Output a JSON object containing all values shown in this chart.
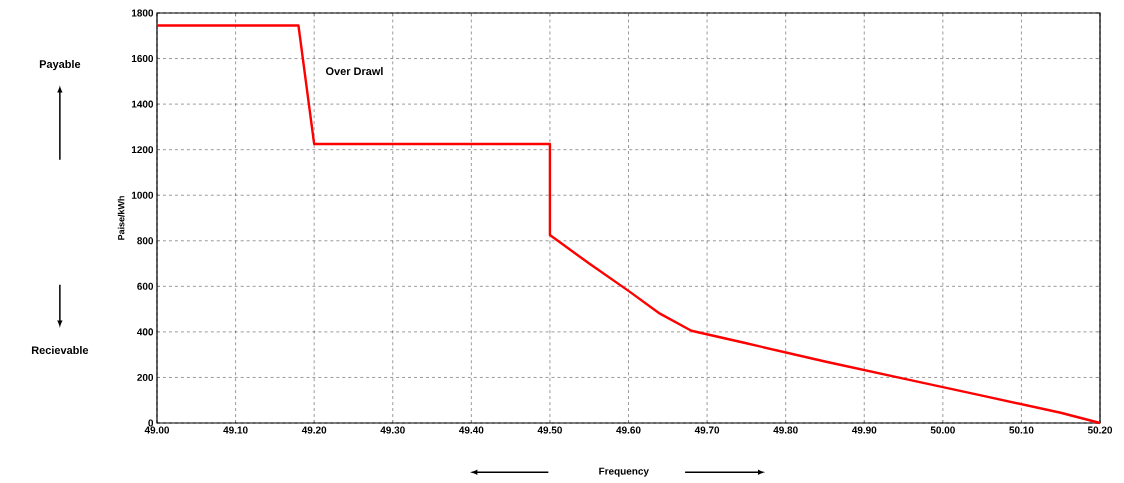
{
  "chart_data": {
    "type": "line",
    "ylabel": "Paise/kWh",
    "xlabel": "Frequency",
    "annotations": [
      "Over Drawl",
      "Payable",
      "Recievable"
    ],
    "series": [
      {
        "color": "#ff0000",
        "x": [
          49.0,
          49.18,
          49.2,
          49.5,
          49.5,
          49.55,
          49.6,
          49.64,
          49.68,
          49.75,
          49.85,
          49.95,
          50.05,
          50.15,
          50.2
        ],
        "values": [
          1745,
          1745,
          1225,
          1225,
          825,
          700,
          580,
          480,
          405,
          350,
          270,
          195,
          120,
          45,
          0
        ]
      }
    ],
    "xlim": [
      49.0,
      50.2
    ],
    "xticks": [
      {
        "value": 49.0,
        "label": "49.00"
      },
      {
        "value": 49.1,
        "label": "49.10"
      },
      {
        "value": 49.2,
        "label": "49.20"
      },
      {
        "value": 49.3,
        "label": "49.30"
      },
      {
        "value": 49.4,
        "label": "49.40"
      },
      {
        "value": 49.5,
        "label": "49.50"
      },
      {
        "value": 49.6,
        "label": "49.60"
      },
      {
        "value": 49.7,
        "label": "49.70"
      },
      {
        "value": 49.8,
        "label": "49.80"
      },
      {
        "value": 49.9,
        "label": "49.90"
      },
      {
        "value": 50.0,
        "label": "50.00"
      },
      {
        "value": 50.1,
        "label": "50.10"
      },
      {
        "value": 50.2,
        "label": "50.20"
      }
    ],
    "ylim": [
      0,
      1800
    ],
    "yticks": [
      0,
      200,
      400,
      600,
      800,
      1000,
      1200,
      1400,
      1600,
      1800
    ],
    "grid": true,
    "marker": "none",
    "line_style": "solid"
  }
}
